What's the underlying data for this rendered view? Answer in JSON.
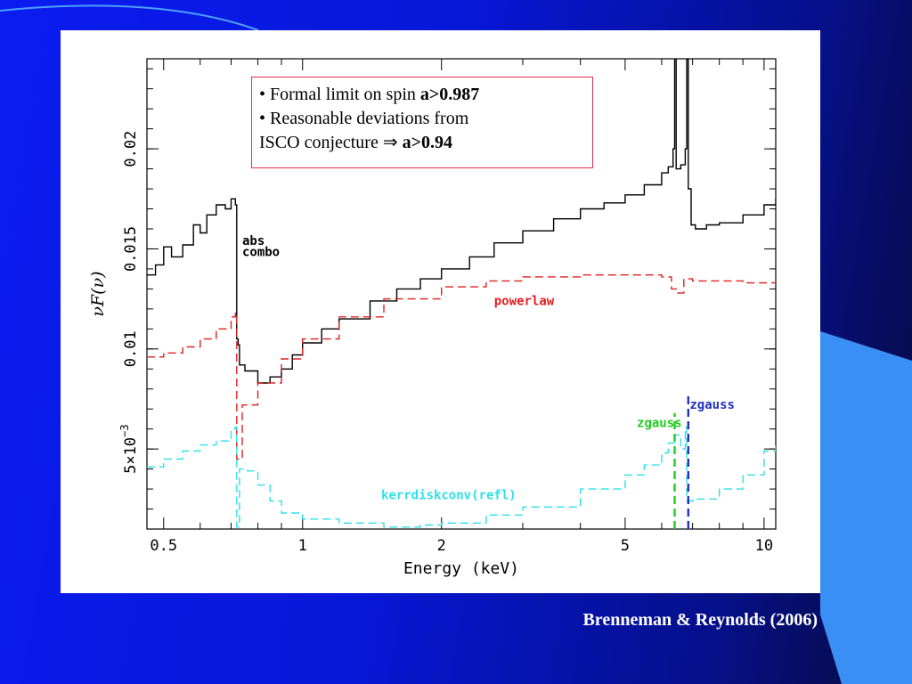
{
  "slide": {
    "bullet1": "• Formal limit on spin ",
    "bullet1_bold": "a>0.987",
    "bullet2": "• Reasonable deviations from",
    "bullet3": "ISCO conjecture ⇒ ",
    "bullet3_bold": "a>0.94",
    "caption": "Brenneman & Reynolds (2006)",
    "colors": {
      "background": "#0717d8",
      "accent_panel": "#3a8ff5",
      "caption": "#ffffff",
      "box_border": "#e03050"
    }
  },
  "chart_data": {
    "type": "line",
    "xlabel": "Energy (keV)",
    "ylabel": "νF(ν)",
    "xscale": "log",
    "xlim": [
      0.46,
      10.6
    ],
    "ylim": [
      0.001,
      0.0245
    ],
    "xticks": [
      {
        "value": 0.5,
        "label": "0.5"
      },
      {
        "value": 1,
        "label": "1"
      },
      {
        "value": 2,
        "label": "2"
      },
      {
        "value": 5,
        "label": "5"
      },
      {
        "value": 10,
        "label": "10"
      }
    ],
    "yticks": [
      {
        "value": 0.005,
        "label": "5×10",
        "sup": "−3"
      },
      {
        "value": 0.01,
        "label": "0.01"
      },
      {
        "value": 0.015,
        "label": "0.015"
      },
      {
        "value": 0.02,
        "label": "0.02"
      }
    ],
    "series": [
      {
        "name": "abs combo",
        "color": "#000000",
        "dash": "",
        "x": [
          0.46,
          0.48,
          0.5,
          0.52,
          0.55,
          0.58,
          0.6,
          0.62,
          0.65,
          0.68,
          0.7,
          0.715,
          0.72,
          0.725,
          0.73,
          0.75,
          0.8,
          0.85,
          0.9,
          0.95,
          1.0,
          1.1,
          1.2,
          1.4,
          1.6,
          1.8,
          2.0,
          2.3,
          2.6,
          3.0,
          3.5,
          4.0,
          4.5,
          5.0,
          5.5,
          6.0,
          6.2,
          6.35,
          6.4,
          6.45,
          6.6,
          6.75,
          6.8,
          6.85,
          6.95,
          7.1,
          7.5,
          8.0,
          9.0,
          10.0,
          10.6
        ],
        "y": [
          0.0137,
          0.0142,
          0.0151,
          0.0146,
          0.0152,
          0.0162,
          0.0158,
          0.0167,
          0.0172,
          0.017,
          0.0175,
          0.0172,
          0.0105,
          0.0102,
          0.0092,
          0.0089,
          0.0083,
          0.0086,
          0.009,
          0.0097,
          0.0103,
          0.011,
          0.0115,
          0.0124,
          0.013,
          0.0135,
          0.014,
          0.0146,
          0.0153,
          0.0159,
          0.0165,
          0.017,
          0.0173,
          0.0177,
          0.0182,
          0.0188,
          0.0191,
          0.02,
          0.0245,
          0.019,
          0.0192,
          0.02,
          0.0245,
          0.018,
          0.0162,
          0.016,
          0.0162,
          0.0163,
          0.0167,
          0.0172,
          0.0175
        ]
      },
      {
        "name": "powerlaw",
        "color": "#e02020",
        "dash": "9,5",
        "x": [
          0.46,
          0.5,
          0.55,
          0.6,
          0.65,
          0.7,
          0.715,
          0.72,
          0.74,
          0.8,
          0.9,
          1.0,
          1.2,
          1.5,
          2.0,
          2.5,
          3.0,
          4.0,
          5.0,
          6.0,
          6.3,
          6.5,
          6.7,
          7.0,
          8.0,
          9.0,
          10.0,
          10.6
        ],
        "y": [
          0.0096,
          0.0098,
          0.0101,
          0.0105,
          0.011,
          0.0116,
          0.0118,
          0.0045,
          0.0072,
          0.0083,
          0.0095,
          0.0105,
          0.0116,
          0.0125,
          0.0131,
          0.0134,
          0.0136,
          0.0137,
          0.0137,
          0.0136,
          0.013,
          0.0128,
          0.0135,
          0.0134,
          0.0134,
          0.0133,
          0.0133,
          0.0133
        ]
      },
      {
        "name": "kerrdiskconv(refl)",
        "color": "#2ee0ea",
        "dash": "9,5",
        "x": [
          0.46,
          0.5,
          0.55,
          0.6,
          0.65,
          0.7,
          0.715,
          0.72,
          0.73,
          0.76,
          0.8,
          0.85,
          0.9,
          1.0,
          1.2,
          1.5,
          1.8,
          2.0,
          2.5,
          3.0,
          4.0,
          5.0,
          5.5,
          6.0,
          6.2,
          6.4,
          6.6,
          6.75,
          6.8,
          6.9,
          7.0,
          8.0,
          9.0,
          10.0,
          10.6
        ],
        "y": [
          0.0041,
          0.0045,
          0.0049,
          0.0052,
          0.0054,
          0.006,
          0.0061,
          0.0011,
          0.004,
          0.0039,
          0.0032,
          0.0024,
          0.0018,
          0.0015,
          0.0013,
          0.0011,
          0.0012,
          0.0013,
          0.0017,
          0.0021,
          0.003,
          0.0037,
          0.0042,
          0.0048,
          0.0053,
          0.0057,
          0.005,
          0.0061,
          0.0024,
          0.0024,
          0.0025,
          0.003,
          0.0037,
          0.0049,
          0.0053
        ]
      },
      {
        "name": "zgauss",
        "color": "#22cc22",
        "dash": "9,5",
        "x": [
          6.4,
          6.4
        ],
        "y": [
          0.001,
          0.0068
        ]
      },
      {
        "name": "zgauss",
        "color": "#2233bb",
        "dash": "9,5",
        "x": [
          6.85,
          6.85
        ],
        "y": [
          0.001,
          0.0078
        ]
      }
    ],
    "labels": [
      {
        "text": "abs",
        "x": 0.74,
        "y": 0.0152,
        "color": "#000000"
      },
      {
        "text": "combo",
        "x": 0.74,
        "y": 0.01465,
        "color": "#000000"
      },
      {
        "text": "powerlaw",
        "x": 2.6,
        "y": 0.0122,
        "color": "#e02020"
      },
      {
        "text": "kerrdiskconv(refl)",
        "x": 1.48,
        "y": 0.0025,
        "color": "#2ee0ea"
      },
      {
        "text": "zgauss",
        "x": 5.3,
        "y": 0.0061,
        "color": "#22cc22"
      },
      {
        "text": "zgauss",
        "x": 6.9,
        "y": 0.007,
        "color": "#2233bb"
      }
    ]
  }
}
